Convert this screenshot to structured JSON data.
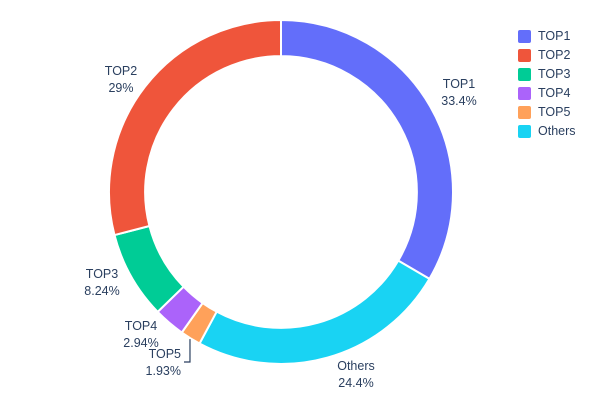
{
  "page": {
    "background": "#ffffff"
  },
  "chart_data": {
    "type": "pie",
    "subtype": "donut",
    "title": "",
    "hole": 0.79,
    "direction": "clockwise",
    "start_angle_deg": 0,
    "categories": [
      "TOP1",
      "TOP2",
      "TOP3",
      "TOP4",
      "TOP5",
      "Others"
    ],
    "values": [
      33.4,
      29,
      8.24,
      2.94,
      1.93,
      24.4
    ],
    "pct_labels": [
      "33.4%",
      "29%",
      "8.24%",
      "2.94%",
      "1.93%",
      "24.4%"
    ],
    "colors": [
      "#636EFA",
      "#EF553B",
      "#00CC96",
      "#AB63FA",
      "#FFA15A",
      "#19D3F3"
    ],
    "draw_order": [
      0,
      5,
      4,
      3,
      2,
      1
    ],
    "label_position": "outside",
    "legend_position": "right-top",
    "text_color": "#2a3f5f",
    "slice_border_color": "#ffffff",
    "connector": {
      "slice_index": 4,
      "color": "#2a3f5f"
    }
  }
}
